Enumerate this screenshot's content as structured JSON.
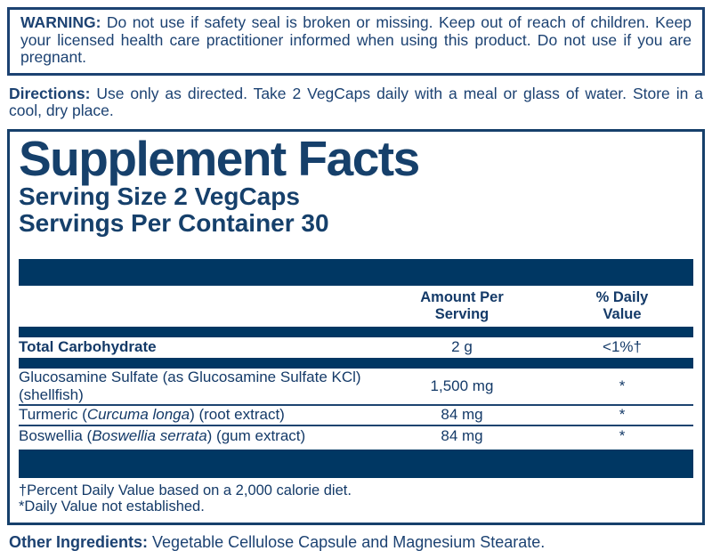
{
  "colors": {
    "navy_text": "#1c4272",
    "panel_navy": "#16406b",
    "bar_navy": "#003763"
  },
  "warning": {
    "label": "WARNING:",
    "text": "Do not use if safety seal is broken or missing. Keep out of reach of children. Keep your licensed health care practitioner informed when using this product. Do not use if you are pregnant."
  },
  "directions": {
    "label": "Directions:",
    "text": "Use only as directed. Take 2 VegCaps daily with a meal or glass of water. Store in a cool, dry place."
  },
  "panel": {
    "title": "Supplement Facts",
    "serving_size": "Serving Size 2 VegCaps",
    "servings_per_container": "Servings Per Container 30",
    "columns": {
      "amount": "Amount Per\nServing",
      "daily_value": "% Daily\nValue"
    },
    "total_carbohydrate": {
      "name": "Total Carbohydrate",
      "amount": "2 g",
      "daily_value": "<1%†"
    },
    "rows": [
      {
        "name_prefix": "Glucosamine Sulfate (as Glucosamine Sulfate KCl) (shellfish)",
        "name_italic": "",
        "name_suffix": "",
        "amount": "1,500 mg",
        "daily_value": "*"
      },
      {
        "name_prefix": "Turmeric (",
        "name_italic": "Curcuma longa",
        "name_suffix": ") (root extract)",
        "amount": "84 mg",
        "daily_value": "*"
      },
      {
        "name_prefix": "Boswellia (",
        "name_italic": "Boswellia serrata",
        "name_suffix": ") (gum extract)",
        "amount": "84 mg",
        "daily_value": "*"
      }
    ],
    "footnotes": [
      "†Percent Daily Value based on a 2,000 calorie diet.",
      "*Daily Value not established."
    ]
  },
  "other_ingredients": {
    "label": "Other Ingredients:",
    "text": "Vegetable Cellulose Capsule and Magnesium Stearate."
  }
}
